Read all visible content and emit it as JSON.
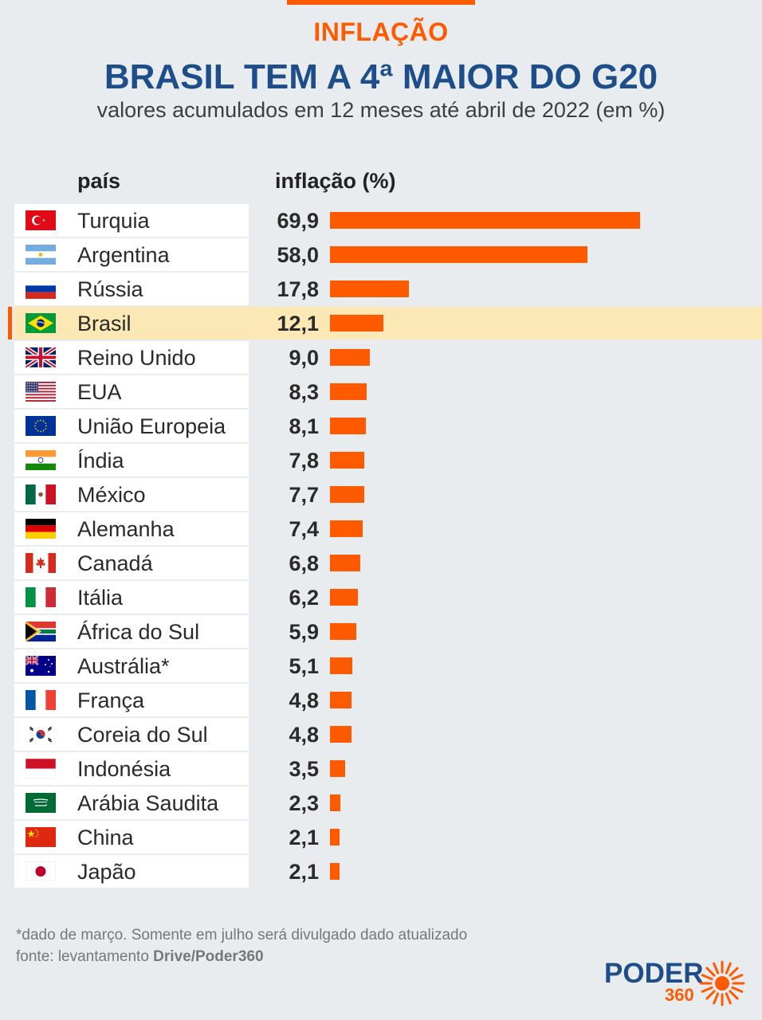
{
  "header": {
    "kicker": "INFLAÇÃO",
    "title": "BRASIL TEM A 4ª MAIOR DO G20",
    "subtitle": "valores acumulados em 12 meses até abril de 2022 (em %)"
  },
  "columns": {
    "country": "país",
    "value": "inflação (%)"
  },
  "chart_data": {
    "type": "bar",
    "title": "BRASIL TEM A 4ª MAIOR DO G20",
    "categories": [
      "Turquia",
      "Argentina",
      "Rússia",
      "Brasil",
      "Reino Unido",
      "EUA",
      "União Europeia",
      "Índia",
      "México",
      "Alemanha",
      "Canadá",
      "Itália",
      "África do Sul",
      "Austrália*",
      "França",
      "Coreia do Sul",
      "Indonésia",
      "Arábia Saudita",
      "China",
      "Japão"
    ],
    "values": [
      69.9,
      58.0,
      17.8,
      12.1,
      9.0,
      8.3,
      8.1,
      7.8,
      7.7,
      7.4,
      6.8,
      6.2,
      5.9,
      5.1,
      4.8,
      4.8,
      3.5,
      2.3,
      2.1,
      2.1
    ],
    "value_labels": [
      "69,9",
      "58,0",
      "17,8",
      "12,1",
      "9,0",
      "8,3",
      "8,1",
      "7,8",
      "7,7",
      "7,4",
      "6,8",
      "6,2",
      "5,9",
      "5,1",
      "4,8",
      "4,8",
      "3,5",
      "2,3",
      "2,1",
      "2,1"
    ],
    "flags": [
      "turkey-flag-icon",
      "argentina-flag-icon",
      "russia-flag-icon",
      "brazil-flag-icon",
      "uk-flag-icon",
      "usa-flag-icon",
      "eu-flag-icon",
      "india-flag-icon",
      "mexico-flag-icon",
      "germany-flag-icon",
      "canada-flag-icon",
      "italy-flag-icon",
      "south-africa-flag-icon",
      "australia-flag-icon",
      "france-flag-icon",
      "south-korea-flag-icon",
      "indonesia-flag-icon",
      "saudi-arabia-flag-icon",
      "china-flag-icon",
      "japan-flag-icon"
    ],
    "highlight": "Brasil",
    "xlim": [
      0,
      69.9
    ],
    "bar_color": "#ff5a00",
    "highlight_color": "#fbe8b4"
  },
  "footer": {
    "note": "*dado de março. Somente em julho será divulgado dado atualizado",
    "source_prefix": "fonte: levantamento ",
    "source_name": "Drive/Poder360"
  },
  "logo": {
    "name": "PODER",
    "sub": "360"
  },
  "colors": {
    "accent": "#ff5a00",
    "brand": "#1d4e89",
    "background": "#e9ecef"
  }
}
